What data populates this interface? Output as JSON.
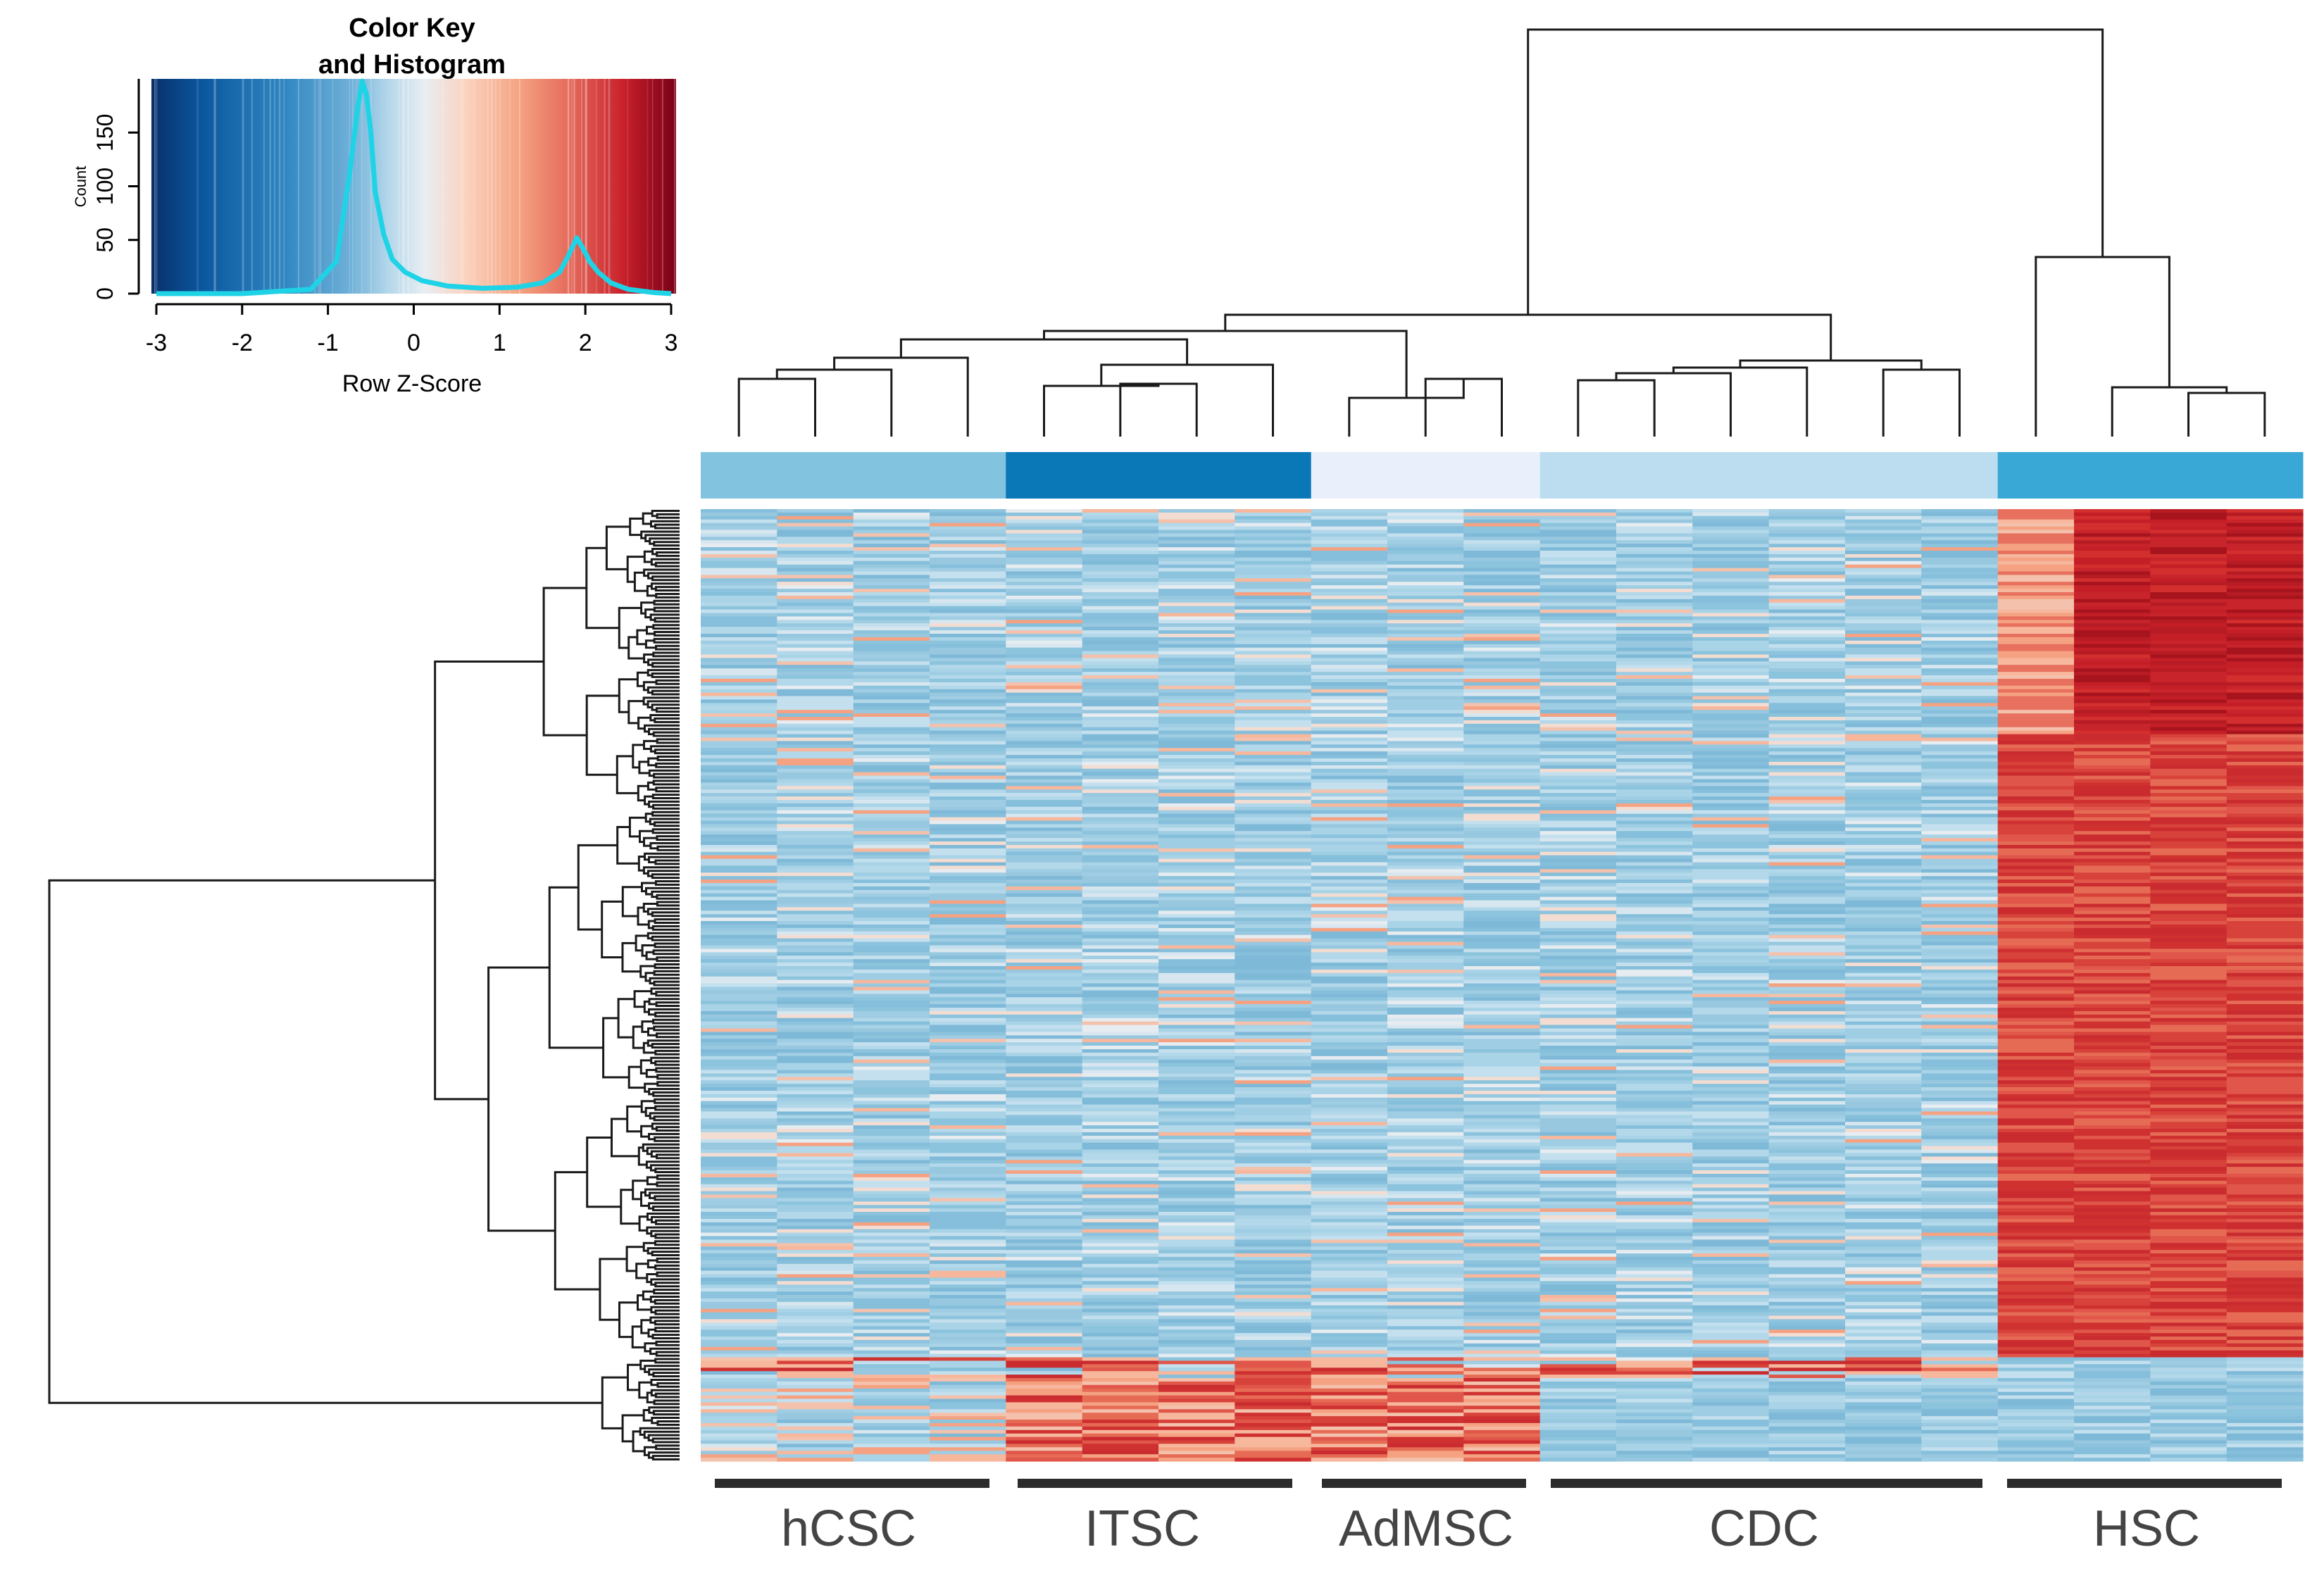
{
  "chart_data": {
    "type": "heatmap",
    "title": "",
    "color_key": {
      "title_line1": "Color Key",
      "title_line2": "and Histogram",
      "xlabel": "Row Z-Score",
      "ylabel": "Count",
      "x_ticks": [
        "-3",
        "-2",
        "-1",
        "0",
        "1",
        "2",
        "3"
      ],
      "y_ticks": [
        "0",
        "50",
        "100",
        "150"
      ],
      "xlim": [
        -3,
        3
      ],
      "ylim": [
        0,
        200
      ],
      "colors": [
        "#08306b",
        "#0b58a0",
        "#2f86c1",
        "#6fb0d8",
        "#b3d6ea",
        "#e8eef3",
        "#fbd3bf",
        "#f5a382",
        "#e4685a",
        "#c8202a",
        "#7a0017"
      ],
      "histogram": {
        "color": "#1fd3e6",
        "z": [
          -3.0,
          -2.0,
          -1.2,
          -0.9,
          -0.75,
          -0.65,
          -0.6,
          -0.55,
          -0.5,
          -0.45,
          -0.35,
          -0.25,
          -0.1,
          0.1,
          0.4,
          0.8,
          1.2,
          1.5,
          1.7,
          1.8,
          1.9,
          1.95,
          2.0,
          2.05,
          2.15,
          2.3,
          2.5,
          2.8,
          3.0
        ],
        "count": [
          0,
          0,
          4,
          30,
          110,
          175,
          198,
          185,
          150,
          95,
          55,
          32,
          20,
          12,
          7,
          5,
          6,
          10,
          20,
          35,
          52,
          45,
          38,
          30,
          20,
          10,
          4,
          1,
          0
        ]
      }
    },
    "groups": [
      {
        "label": "hCSC",
        "color": "#82c3e0",
        "samples": 4
      },
      {
        "label": "ITSC",
        "color": "#0a77b7",
        "samples": 4
      },
      {
        "label": "AdMSC",
        "color": "#eaf0fb",
        "samples": 3
      },
      {
        "label": "CDC",
        "color": "#bcdcf0",
        "samples": 6
      },
      {
        "label": "HSC",
        "color": "#3aa8d6",
        "samples": 4
      }
    ],
    "row_blocks": [
      {
        "rows": 65,
        "hsc_pattern": "first_sample_orange_rest_dark_red",
        "others": "blue"
      },
      {
        "rows": 180,
        "hsc_pattern": "all_red",
        "others": "blue"
      },
      {
        "rows": 6,
        "others_pattern": "mixed_red_band",
        "hsc_pattern": "blue"
      },
      {
        "rows": 24,
        "others_pattern": "ITSC_AdMSC_orange_red",
        "hsc_pattern": "blue"
      }
    ],
    "column_dendrogram": "21 samples clustered; HSC separates at the top split from all other samples",
    "row_dendrogram": "275 genes clustered hierarchically"
  }
}
